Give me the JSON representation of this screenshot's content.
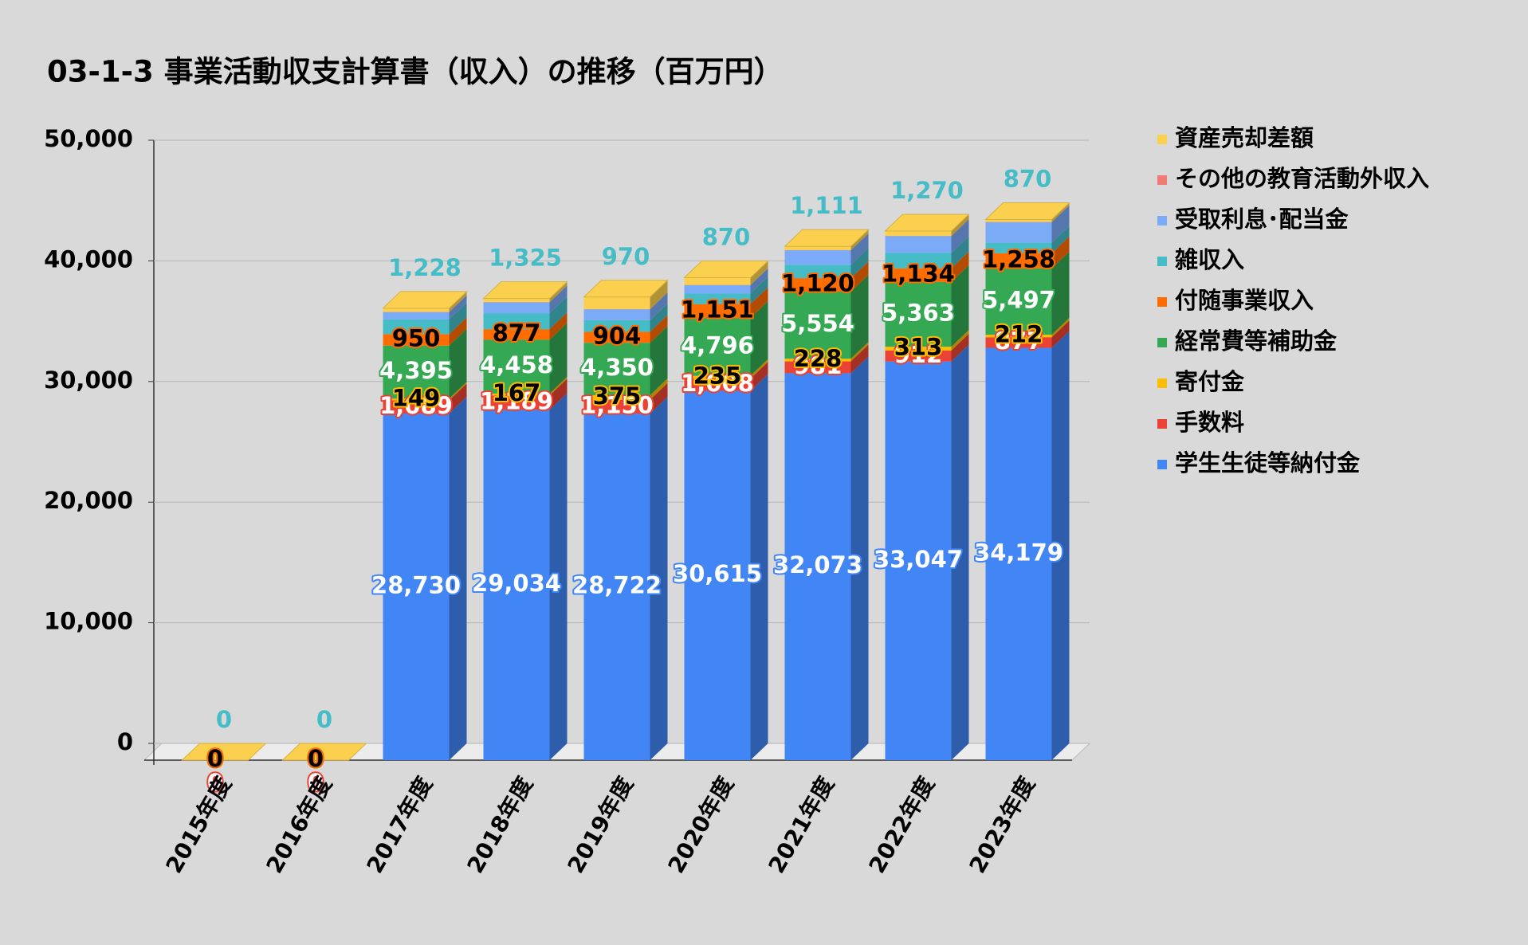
{
  "chart_data": {
    "type": "bar3d_stacked",
    "title": "03-1-3 事業活動収支計算書（収入）の推移（百万円）",
    "categories": [
      "2015年度",
      "2016年度",
      "2017年度",
      "2018年度",
      "2019年度",
      "2020年度",
      "2021年度",
      "2022年度",
      "2023年度"
    ],
    "ylim": [
      0,
      50000
    ],
    "yticks": [
      {
        "value": 0,
        "label": "0"
      },
      {
        "value": 10000,
        "label": "10,000"
      },
      {
        "value": 20000,
        "label": "20,000"
      },
      {
        "value": 30000,
        "label": "30,000"
      },
      {
        "value": 40000,
        "label": "40,000"
      },
      {
        "value": 50000,
        "label": "50,000"
      }
    ],
    "grid": true,
    "legend": "right",
    "series": [
      {
        "name": "学生生徒等納付金",
        "color": "#4285f4",
        "values": [
          0,
          0,
          28730,
          29034,
          28722,
          30615,
          32073,
          33047,
          34179
        ],
        "value_labels": [
          "0",
          "0",
          "28,730",
          "29,034",
          "28,722",
          "30,615",
          "32,073",
          "33,047",
          "34,179"
        ]
      },
      {
        "name": "手数料",
        "color": "#ea4335",
        "values": [
          0,
          0,
          1089,
          1189,
          1150,
          1008,
          981,
          912,
          877
        ],
        "value_labels": [
          "0",
          "0",
          "1,089",
          "1,189",
          "1,150",
          "1,008",
          "981",
          "912",
          "877"
        ]
      },
      {
        "name": "寄付金",
        "color": "#fbbc04",
        "values": [
          0,
          0,
          149,
          167,
          375,
          235,
          228,
          313,
          212
        ],
        "value_labels": [
          "0",
          "0",
          "149",
          "167",
          "375",
          "235",
          "228",
          "313",
          "212"
        ]
      },
      {
        "name": "経常費等補助金",
        "color": "#34a853",
        "values": [
          0,
          0,
          4395,
          4458,
          4350,
          4796,
          5554,
          5363,
          5497
        ],
        "value_labels": [
          "0",
          "0",
          "4,395",
          "4,458",
          "4,350",
          "4,796",
          "5,554",
          "5,363",
          "5,497"
        ]
      },
      {
        "name": "付随事業収入",
        "color": "#ff6d01",
        "values": [
          0,
          0,
          950,
          877,
          904,
          1151,
          1120,
          1134,
          1258
        ],
        "value_labels": [
          "0",
          "0",
          "950",
          "877",
          "904",
          "1,151",
          "1,120",
          "1,134",
          "1,258"
        ]
      },
      {
        "name": "雑収入",
        "color": "#46bdc6",
        "values": [
          0,
          0,
          1228,
          1325,
          970,
          870,
          1111,
          1270,
          870
        ],
        "value_labels": [
          "0",
          "0",
          "1,228",
          "1,325",
          "970",
          "870",
          "1,111",
          "1,270",
          "870"
        ]
      },
      {
        "name": "受取利息･配当金",
        "color": "#7baaf7",
        "values": [
          0,
          0,
          600,
          900,
          900,
          700,
          1200,
          1400,
          1700
        ]
      },
      {
        "name": "その他の教育活動外収入",
        "color": "#f07b72",
        "values": [
          0,
          0,
          20,
          20,
          20,
          20,
          20,
          20,
          20
        ]
      },
      {
        "name": "資産売却差額",
        "color": "#fcd04f",
        "values": [
          0,
          0,
          300,
          300,
          1000,
          600,
          300,
          400,
          200
        ]
      }
    ]
  }
}
